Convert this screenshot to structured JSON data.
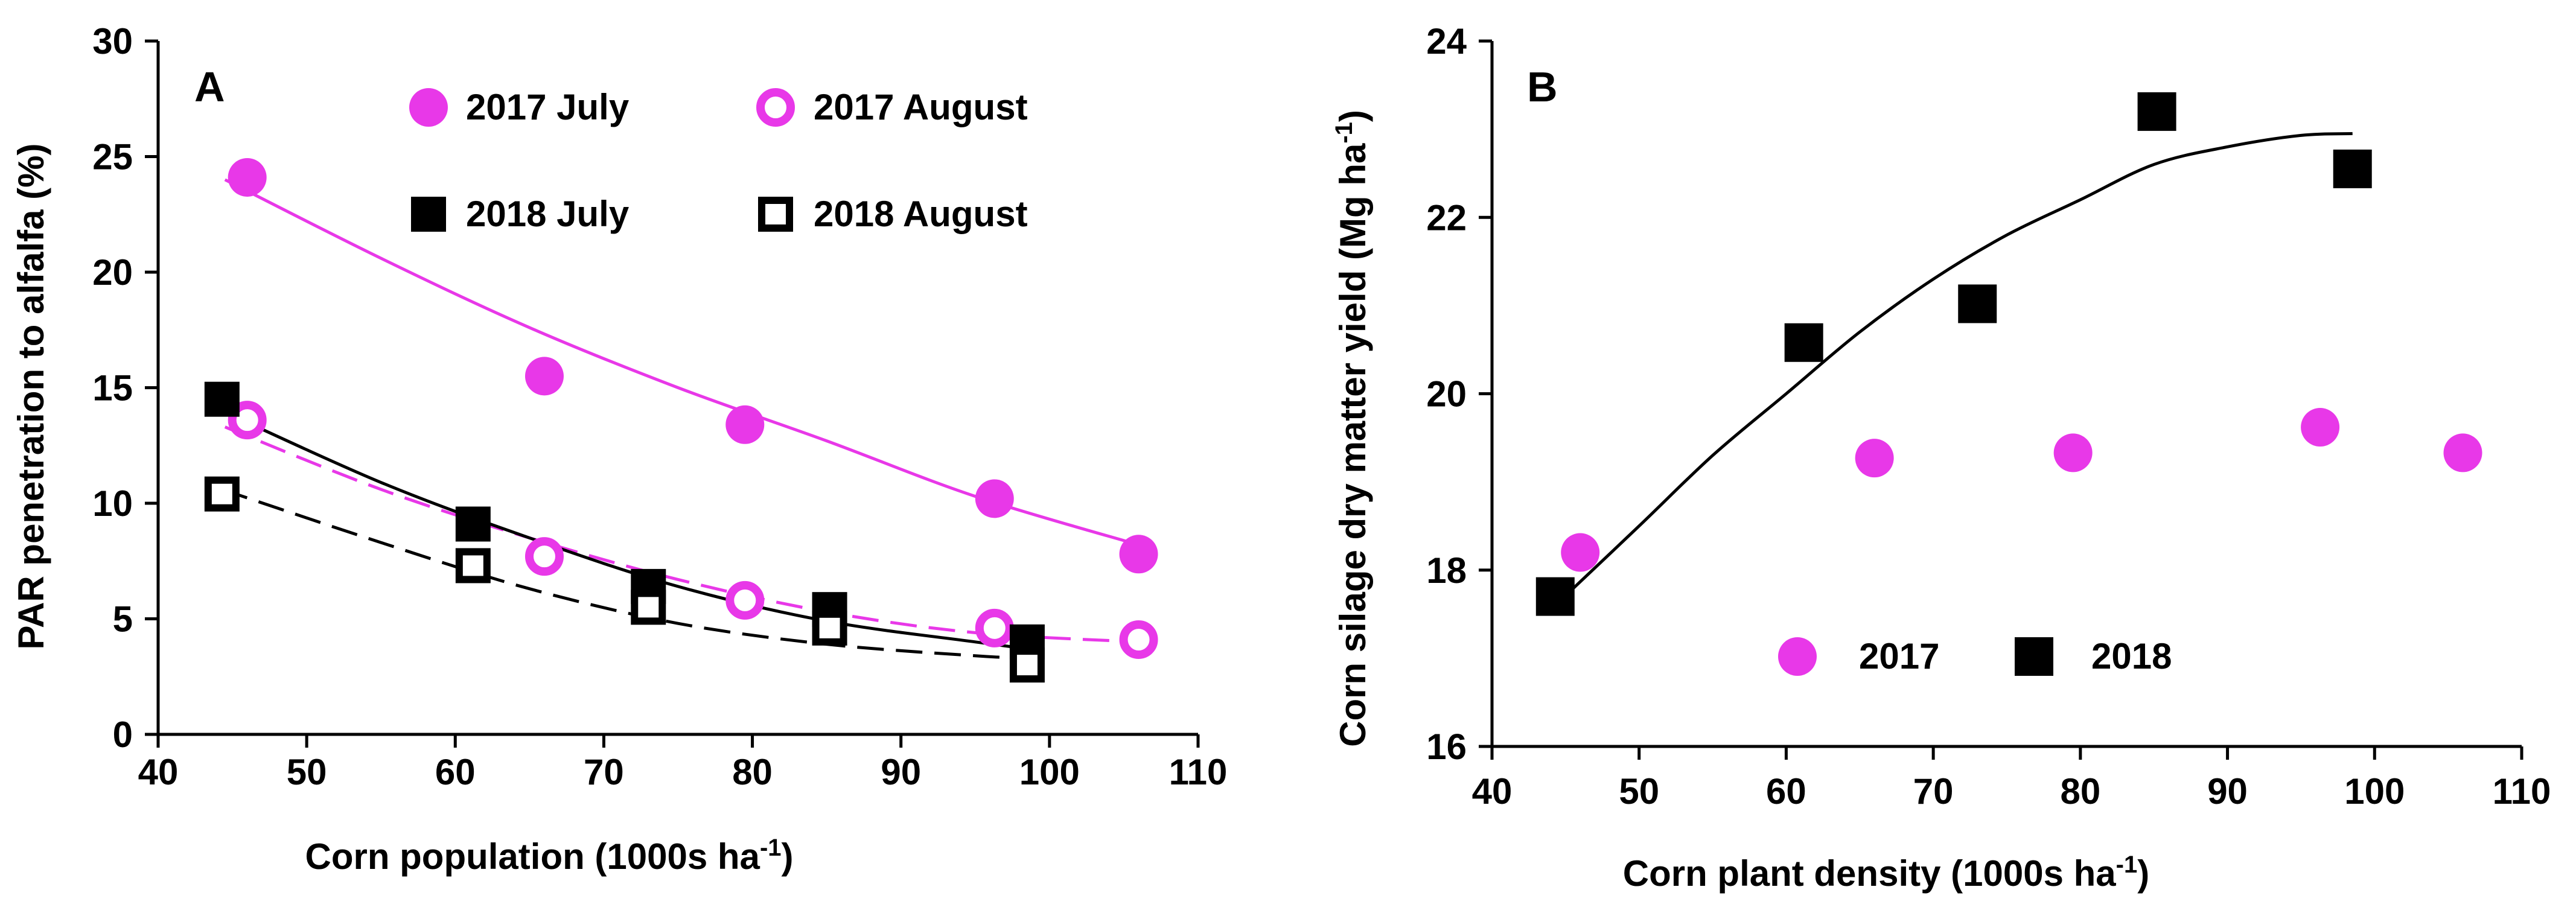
{
  "colors": {
    "magenta": "#e838e8",
    "black": "#000000",
    "white": "#ffffff"
  },
  "chart_data": [
    {
      "panel": "A",
      "type": "scatter",
      "xlabel": "Corn population (1000s ha",
      "xlabel_sup": "-1",
      "xlabel_tail": ")",
      "ylabel": "PAR penetration to alfalfa (%)",
      "xlim": [
        40,
        110
      ],
      "ylim": [
        0,
        30
      ],
      "xticks": [
        "40",
        "50",
        "60",
        "70",
        "80",
        "90",
        "100",
        "110"
      ],
      "yticks": [
        "0",
        "5",
        "10",
        "15",
        "20",
        "25",
        "30"
      ],
      "legend_placement": "top",
      "series": [
        {
          "name": "2017 July",
          "marker": "filled-circle",
          "color": "#e838e8",
          "x": [
            46,
            66,
            79.5,
            96.3,
            106
          ],
          "y": [
            24.1,
            15.5,
            13.4,
            10.2,
            7.8
          ],
          "fit": {
            "style": "solid",
            "color": "#e838e8",
            "x": [
              44.5,
              55,
              65,
              75,
              85,
              95,
              106
            ],
            "y": [
              24.0,
              20.6,
              17.6,
              15.0,
              12.7,
              10.3,
              8.2
            ]
          }
        },
        {
          "name": "2017 August",
          "marker": "open-circle",
          "color": "#e838e8",
          "x": [
            46,
            66,
            79.5,
            96.3,
            106
          ],
          "y": [
            13.6,
            7.7,
            5.8,
            4.6,
            4.1
          ],
          "fit": {
            "style": "dashed",
            "color": "#e838e8",
            "x": [
              44.5,
              55,
              65,
              75,
              85,
              95,
              106
            ],
            "y": [
              13.3,
              10.6,
              8.5,
              6.7,
              5.3,
              4.4,
              4.0
            ]
          }
        },
        {
          "name": "2018 July",
          "marker": "filled-square",
          "color": "#000000",
          "x": [
            44.3,
            61.2,
            73,
            85.2,
            98.5
          ],
          "y": [
            14.5,
            9.1,
            6.4,
            5.4,
            4.0
          ],
          "fit": {
            "style": "solid",
            "color": "#000000",
            "x": [
              44.3,
              55,
              65,
              75,
              85,
              95,
              98.5
            ],
            "y": [
              14.0,
              10.9,
              8.5,
              6.4,
              4.9,
              4.0,
              3.7
            ]
          }
        },
        {
          "name": "2018 August",
          "marker": "open-square",
          "color": "#000000",
          "x": [
            44.3,
            61.2,
            73,
            85.2,
            98.5
          ],
          "y": [
            10.4,
            7.3,
            5.5,
            4.6,
            3.0
          ],
          "fit": {
            "style": "dashed",
            "color": "#000000",
            "x": [
              44.3,
              55,
              65,
              75,
              85,
              95,
              98.5
            ],
            "y": [
              10.6,
              8.3,
              6.3,
              4.8,
              3.9,
              3.4,
              3.3
            ]
          }
        }
      ]
    },
    {
      "panel": "B",
      "type": "scatter",
      "xlabel": "Corn plant density (1000s ha",
      "xlabel_sup": "-1",
      "xlabel_tail": ")",
      "ylabel": "Corn silage dry matter yield (Mg ha",
      "ylabel_sup": "-1",
      "ylabel_tail": ")",
      "xlim": [
        40,
        110
      ],
      "ylim": [
        16,
        24
      ],
      "xticks": [
        "40",
        "50",
        "60",
        "70",
        "80",
        "90",
        "100",
        "110"
      ],
      "yticks": [
        "16",
        "18",
        "20",
        "22",
        "24"
      ],
      "legend_placement": "bottom-center",
      "series": [
        {
          "name": "2017",
          "marker": "filled-circle",
          "color": "#e838e8",
          "x": [
            46,
            66,
            79.5,
            96.3,
            106
          ],
          "y": [
            18.2,
            19.27,
            19.33,
            19.62,
            19.33
          ]
        },
        {
          "name": "2018",
          "marker": "filled-square",
          "color": "#000000",
          "x": [
            44.3,
            61.2,
            73,
            85.2,
            98.5
          ],
          "y": [
            17.7,
            20.58,
            21.02,
            23.2,
            22.55
          ],
          "fit": {
            "style": "solid",
            "color": "#000000",
            "x": [
              44.3,
              50,
              55,
              60,
              65,
              70,
              75,
              80,
              85,
              90,
              95,
              98.5
            ],
            "y": [
              17.6,
              18.5,
              19.3,
              20.0,
              20.7,
              21.3,
              21.8,
              22.2,
              22.6,
              22.8,
              22.93,
              22.95
            ]
          }
        }
      ]
    }
  ]
}
